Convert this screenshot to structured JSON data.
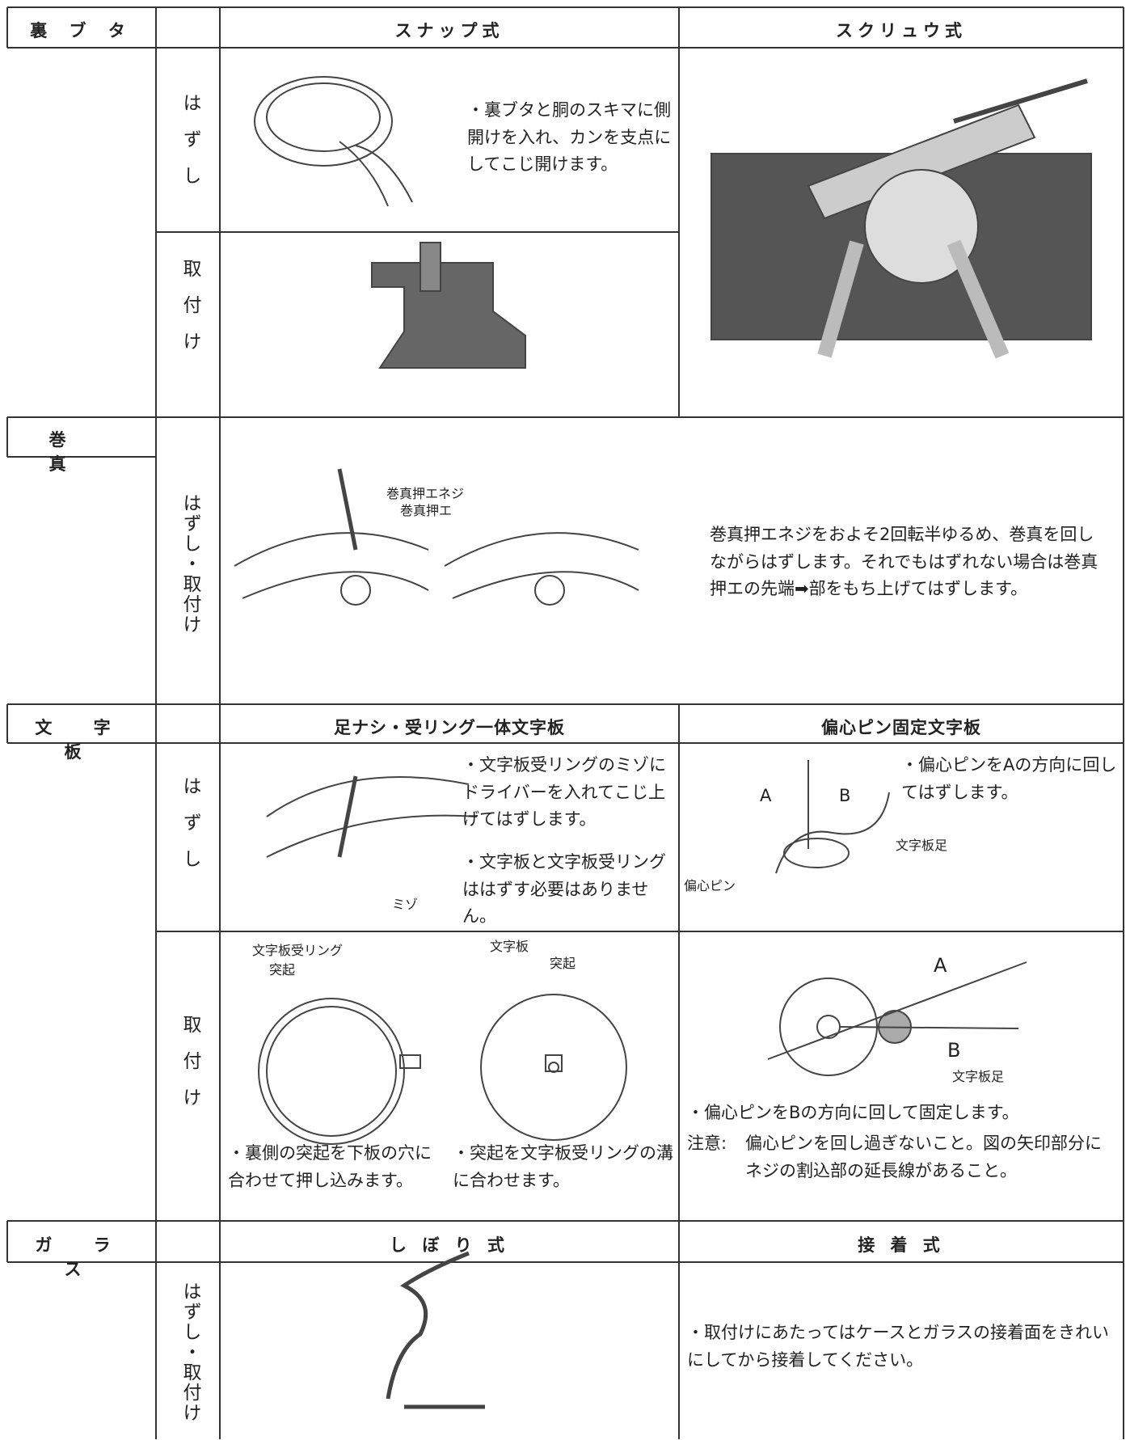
{
  "case_back": {
    "title": "裏 ブ タ",
    "snap_header": "スナップ式",
    "screw_header": "スクリュウ式",
    "remove_label": "はずし",
    "attach_label": "取付け",
    "snap_remove_note": "・裏ブタと胴のスキマに側開けを入れ、カンを支点にしてこじ開けます。"
  },
  "stem": {
    "title": "巻 真",
    "label": "はずし・取付け",
    "callout_screw": "巻真押エネジ",
    "callout_holder": "巻真押エ",
    "note": "巻真押エネジをおよそ2回転半ゆるめ、巻真を回しながらはずします。それでもはずれない場合は巻真押エの先端➡部をもち上げてはずします。"
  },
  "dial": {
    "title": "文 字 板",
    "integrated_header": "足ナシ・受リング一体文字板",
    "eccentric_header": "偏心ピン固定文字板",
    "remove_label": "はずし",
    "attach_label": "取付け",
    "integrated_remove_notes": [
      "・文字板受リングのミゾにドライバーを入れてこじ上げてはずします。",
      "・文字板と文字板受リングははずす必要はありません。"
    ],
    "groove": "ミゾ",
    "eccentric_remove_note": "・偏心ピンをAの方向に回してはずします。",
    "mark_a": "A",
    "mark_b": "B",
    "dial_foot": "文字板足",
    "eccentric_pin": "偏心ピン",
    "ring_label": "文字板受リング",
    "bump": "突起",
    "dial_label": "文字板",
    "bump2": "突起",
    "integrated_attach_notes": [
      "・裏側の突起を下板の穴に合わせて押し込みます。",
      "・突起を文字板受リングの溝に合わせます。"
    ],
    "attach_a": "A",
    "attach_b": "B",
    "attach_foot": "文字板足",
    "eccentric_attach_note": "・偏心ピンをBの方向に回して固定します。",
    "caution_label": "注意:",
    "caution": "偏心ピンを回し過ぎないこと。図の矢印部分にネジの割込部の延長線があること。"
  },
  "glass": {
    "title": "ガ ラ ス",
    "press_header": "し ぼ り 式",
    "glue_header": "接 着 式",
    "label": "はずし・取付け",
    "glue_note": "・取付けにあたってはケースとガラスの接着面をきれいにしてから接着してください。"
  }
}
